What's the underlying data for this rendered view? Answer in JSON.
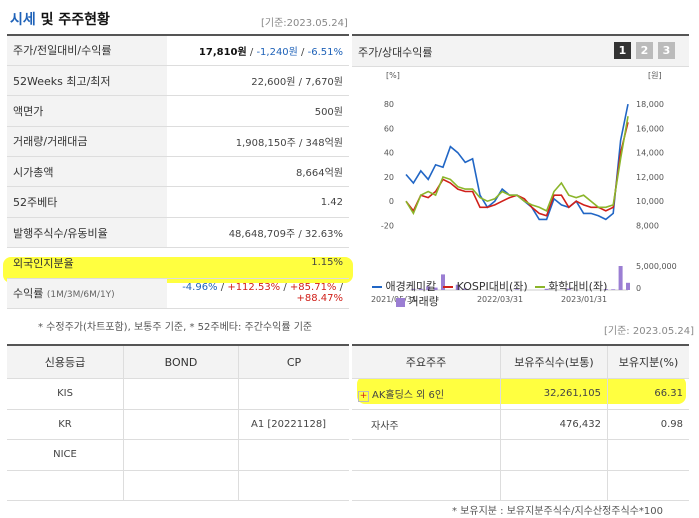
{
  "header": {
    "title_a": "시세",
    "title_b": " 및 주주현황",
    "asof": "[기준:2023.05.24]"
  },
  "quote": {
    "rows": [
      {
        "label": "주가/전일대비/수익률"
      },
      {
        "label": "52Weeks 최고/최저",
        "value": "22,600원 / 7,670원"
      },
      {
        "label": "액면가",
        "value": "500원"
      },
      {
        "label": "거래량/거래대금",
        "value": "1,908,150주 / 348억원"
      },
      {
        "label": "시가총액",
        "value": "8,664억원"
      },
      {
        "label": "52주베타",
        "value": "1.42"
      },
      {
        "label": "발행주식수/유동비율",
        "value": "48,648,709주 / 32.63%"
      },
      {
        "label": "외국인지분율",
        "value": "1.15%"
      }
    ],
    "price": "17,810원",
    "sep1": " / ",
    "change": "-1,240원",
    "sep2": " / ",
    "pct": "-6.51%",
    "return_label": "수익률",
    "return_periods": "(1M/3M/6M/1Y)",
    "returns": [
      "-4.96%",
      "+112.53%",
      "+85.71%",
      "+88.47%"
    ],
    "footnote": "* 수정주가(차트포함), 보통주 기준, * 52주베타: 주간수익률 기준"
  },
  "chart": {
    "title": "주가/상대수익률",
    "pages": [
      "1",
      "2",
      "3"
    ],
    "left_unit": "[%]",
    "right_unit": "[원]",
    "chart_data": {
      "type": "line",
      "x_ticks": [
        "2021/05/31",
        "2022/03/31",
        "2023/01/31"
      ],
      "y_left_ticks": [
        "80",
        "60",
        "40",
        "20",
        "0",
        "-20"
      ],
      "y_right_ticks": [
        "18,000",
        "16,000",
        "14,000",
        "12,000",
        "10,000",
        "8,000"
      ],
      "vol_ticks": [
        "5,000,000",
        "0"
      ],
      "ylim_left": [
        -27,
        90
      ],
      "series": [
        {
          "name": "애경케미칼",
          "color": "#2166c5",
          "values": [
            22,
            15,
            25,
            18,
            30,
            28,
            45,
            40,
            32,
            35,
            5,
            -5,
            0,
            10,
            5,
            5,
            0,
            -5,
            -15,
            -15,
            2,
            -3,
            -5,
            0,
            -10,
            -10,
            -12,
            -15,
            -10,
            50,
            80
          ]
        },
        {
          "name": "KOSPI대비(좌)",
          "color": "#d0201a",
          "values": [
            0,
            -8,
            5,
            3,
            8,
            18,
            15,
            10,
            8,
            8,
            -5,
            -5,
            -3,
            0,
            3,
            5,
            2,
            -5,
            -10,
            -12,
            5,
            5,
            -5,
            0,
            -3,
            -5,
            -5,
            -8,
            -5,
            40,
            65
          ]
        },
        {
          "name": "화학대비(좌)",
          "color": "#8bb52a",
          "values": [
            0,
            -10,
            5,
            8,
            5,
            20,
            18,
            12,
            10,
            10,
            3,
            0,
            2,
            8,
            5,
            5,
            0,
            -3,
            -5,
            -8,
            8,
            15,
            5,
            3,
            5,
            0,
            -5,
            -5,
            -3,
            35,
            70
          ]
        },
        {
          "name": "거래량",
          "color": "#9b7ed3",
          "volume": [
            0,
            0.05,
            0.05,
            0.15,
            0.1,
            0.65,
            0,
            0.22,
            0.06,
            0,
            0,
            0,
            0,
            0,
            0,
            0.03,
            0,
            0,
            0,
            0.05,
            0,
            0,
            0.06,
            0,
            0,
            0,
            0,
            0.04,
            0.03,
            1,
            0.3
          ]
        }
      ]
    }
  },
  "asof2": "[기준: 2023.05.24]",
  "credit": {
    "headers": [
      "신용등급",
      "BOND",
      "CP"
    ],
    "rows": [
      [
        "KIS",
        "",
        ""
      ],
      [
        "KR",
        "",
        "A1  [20221128]"
      ],
      [
        "NICE",
        "",
        ""
      ],
      [
        "",
        "",
        ""
      ]
    ]
  },
  "holders": {
    "headers": [
      "주요주주",
      "보유주식수(보통)",
      "보유지분(%)"
    ],
    "rows": [
      [
        "AK홀딩스 외 6인",
        "32,261,105",
        "66.31"
      ],
      [
        "자사주",
        "476,432",
        "0.98"
      ],
      [
        "",
        "",
        ""
      ],
      [
        "",
        "",
        ""
      ]
    ],
    "expand_icon": "+",
    "footnote": "* 보유지분 : 보유지분주식수/지수산정주식수*100"
  }
}
